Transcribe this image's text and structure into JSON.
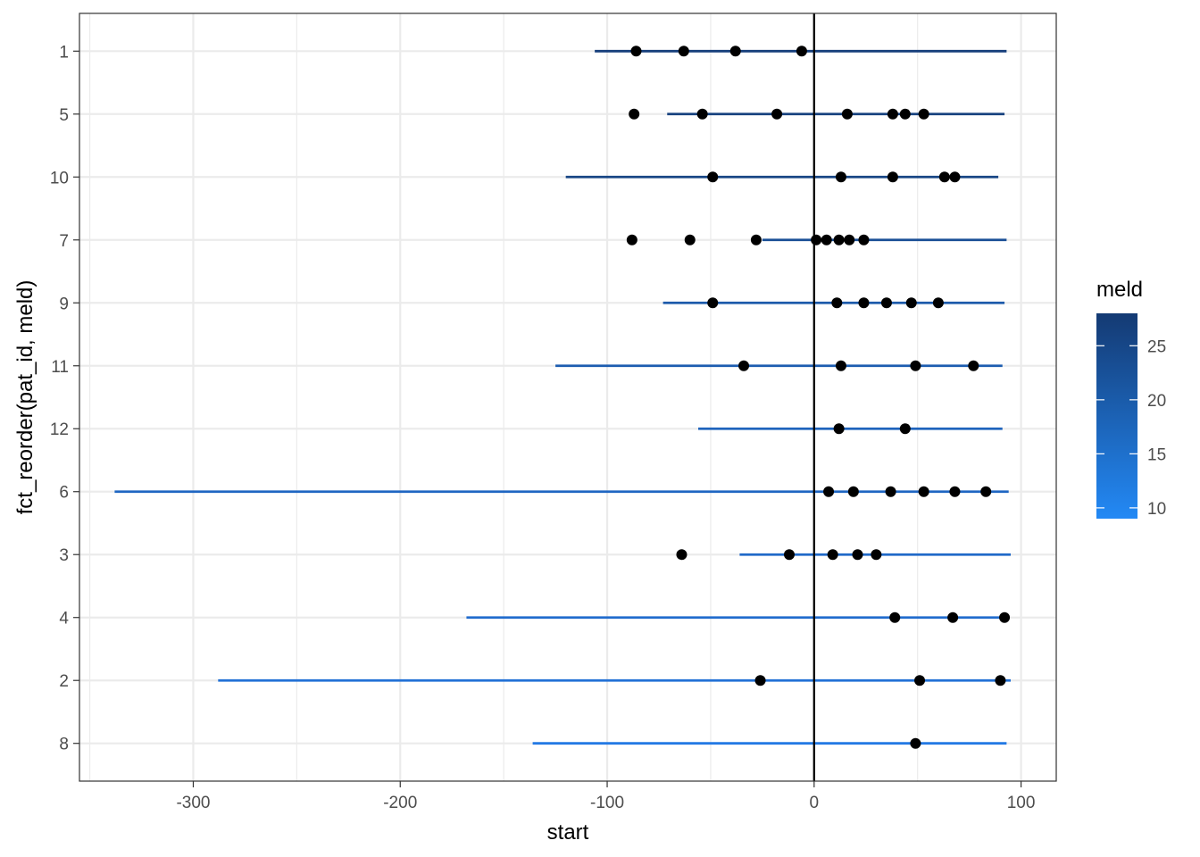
{
  "chart_data": {
    "type": "scatter",
    "xlabel": "start",
    "ylabel": "fct_reorder(pat_id, meld)",
    "xlim": [
      -355,
      117
    ],
    "x_ticks": [
      "-300",
      "-200",
      "-100",
      "0",
      "100"
    ],
    "x_tick_values": [
      -300,
      -200,
      -100,
      0,
      100
    ],
    "grid": true,
    "vline_x": 0,
    "legend": {
      "title": "meld",
      "position": "right",
      "type": "colorbar",
      "range": [
        9,
        28
      ],
      "low_color": "#2389f5",
      "high_color": "#143a73",
      "ticks": [
        "10",
        "15",
        "20",
        "25"
      ],
      "tick_values": [
        10,
        15,
        20,
        25
      ]
    },
    "point_color": "#000000",
    "patients": [
      {
        "id": "1",
        "meld": 27,
        "color": "#163f7c",
        "seg_start": -106,
        "seg_end": 93,
        "points": [
          -86,
          -63,
          -38,
          -6
        ]
      },
      {
        "id": "5",
        "meld": 26,
        "color": "#17427f",
        "seg_start": -71,
        "seg_end": 92,
        "points": [
          -87,
          -54,
          -18,
          16,
          38,
          44,
          53
        ]
      },
      {
        "id": "10",
        "meld": 25,
        "color": "#184685",
        "seg_start": -120,
        "seg_end": 89,
        "points": [
          -49,
          13,
          38,
          63,
          68
        ]
      },
      {
        "id": "7",
        "meld": 22,
        "color": "#1a4f96",
        "seg_start": -25,
        "seg_end": 93,
        "points": [
          -88,
          -60,
          -28,
          1,
          6,
          12,
          17,
          24
        ]
      },
      {
        "id": "9",
        "meld": 19,
        "color": "#1c5aab",
        "seg_start": -73,
        "seg_end": 92,
        "points": [
          -49,
          11,
          24,
          35,
          47,
          60
        ]
      },
      {
        "id": "11",
        "meld": 18,
        "color": "#1d5db0",
        "seg_start": -125,
        "seg_end": 91,
        "points": [
          -34,
          13,
          49,
          77
        ]
      },
      {
        "id": "12",
        "meld": 16,
        "color": "#1e63bc",
        "seg_start": -56,
        "seg_end": 91,
        "points": [
          12,
          44
        ]
      },
      {
        "id": "6",
        "meld": 15,
        "color": "#1f66c2",
        "seg_start": -338,
        "seg_end": 94,
        "points": [
          7,
          19,
          37,
          53,
          68,
          83
        ]
      },
      {
        "id": "3",
        "meld": 14,
        "color": "#2069c8",
        "seg_start": -36,
        "seg_end": 95,
        "points": [
          -64,
          -12,
          9,
          21,
          30
        ]
      },
      {
        "id": "4",
        "meld": 13,
        "color": "#216ccd",
        "seg_start": -168,
        "seg_end": 93,
        "points": [
          39,
          67,
          92
        ]
      },
      {
        "id": "2",
        "meld": 12,
        "color": "#2271d6",
        "seg_start": -288,
        "seg_end": 95,
        "points": [
          -26,
          51,
          90
        ]
      },
      {
        "id": "8",
        "meld": 10,
        "color": "#2379e4",
        "seg_start": -136,
        "seg_end": 93,
        "points": [
          49
        ]
      }
    ]
  }
}
